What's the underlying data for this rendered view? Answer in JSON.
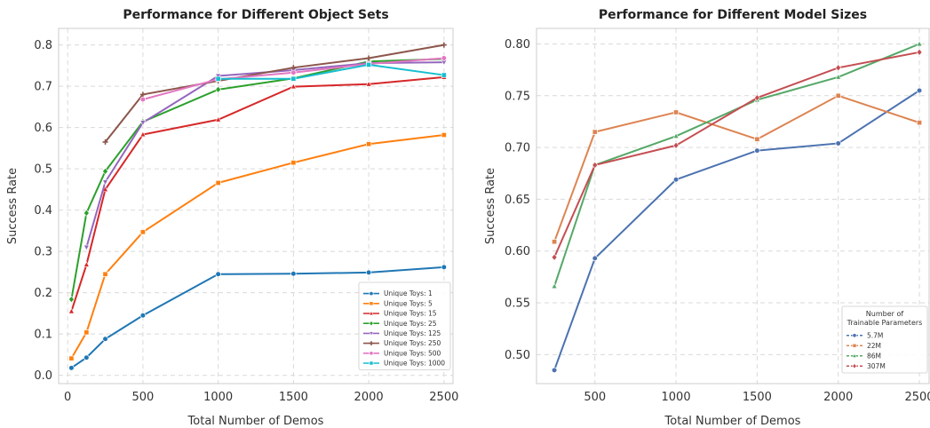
{
  "chart_data": [
    {
      "type": "line",
      "title": "Performance for Different Object Sets",
      "xlabel": "Total Number of Demos",
      "ylabel": "Success Rate",
      "xlim": [
        -60,
        2560
      ],
      "ylim": [
        -0.02,
        0.84
      ],
      "xticks": [
        0,
        500,
        1000,
        1500,
        2000,
        2500
      ],
      "yticks": [
        0.0,
        0.1,
        0.2,
        0.3,
        0.4,
        0.5,
        0.6,
        0.7,
        0.8
      ],
      "ytick_labels": [
        "0.0",
        "0.1",
        "0.2",
        "0.3",
        "0.4",
        "0.5",
        "0.6",
        "0.7",
        "0.8"
      ],
      "grid": true,
      "legend": {
        "placement": "bottom-right"
      },
      "series": [
        {
          "name": "Unique Toys: 1",
          "color": "#1f77b4",
          "marker": "circle",
          "x": [
            25,
            125,
            250,
            500,
            1000,
            1500,
            2000,
            2500
          ],
          "y": [
            0.018,
            0.043,
            0.088,
            0.145,
            0.245,
            0.246,
            0.249,
            0.262
          ]
        },
        {
          "name": "Unique Toys: 5",
          "color": "#ff7f0e",
          "marker": "square",
          "x": [
            25,
            125,
            250,
            500,
            1000,
            1500,
            2000,
            2500
          ],
          "y": [
            0.041,
            0.104,
            0.245,
            0.347,
            0.466,
            0.515,
            0.56,
            0.582
          ]
        },
        {
          "name": "Unique Toys: 15",
          "color": "#d62728",
          "marker": "triangle-up",
          "x": [
            25,
            125,
            250,
            500,
            1000,
            1500,
            2000,
            2500
          ],
          "y": [
            0.155,
            0.268,
            0.45,
            0.583,
            0.619,
            0.699,
            0.705,
            0.722
          ]
        },
        {
          "name": "Unique Toys: 25",
          "color": "#2ca02c",
          "marker": "diamond",
          "x": [
            25,
            125,
            250,
            500,
            1000,
            1500,
            2000,
            2500
          ],
          "y": [
            0.184,
            0.393,
            0.494,
            0.614,
            0.692,
            0.719,
            0.76,
            0.766
          ]
        },
        {
          "name": "Unique Toys: 125",
          "color": "#9467bd",
          "marker": "triangle-down",
          "x": [
            125,
            250,
            500,
            1000,
            1500,
            2000,
            2500
          ],
          "y": [
            0.31,
            0.468,
            0.612,
            0.725,
            0.739,
            0.756,
            0.758
          ]
        },
        {
          "name": "Unique Toys: 250",
          "color": "#8c564b",
          "marker": "plus",
          "x": [
            250,
            500,
            1000,
            1500,
            2000,
            2500
          ],
          "y": [
            0.565,
            0.68,
            0.713,
            0.745,
            0.768,
            0.8
          ]
        },
        {
          "name": "Unique Toys: 500",
          "color": "#e377c2",
          "marker": "circle",
          "x": [
            500,
            1000,
            1500,
            2000,
            2500
          ],
          "y": [
            0.668,
            0.717,
            0.733,
            0.754,
            0.768
          ]
        },
        {
          "name": "Unique Toys: 1000",
          "color": "#17becf",
          "marker": "square",
          "x": [
            1000,
            1500,
            2000,
            2500
          ],
          "y": [
            0.718,
            0.718,
            0.752,
            0.727
          ]
        }
      ]
    },
    {
      "type": "line",
      "title": "Performance for Different Model Sizes",
      "xlabel": "Total Number of Demos",
      "ylabel": "Success Rate",
      "xlim": [
        140,
        2560
      ],
      "ylim": [
        0.472,
        0.815
      ],
      "xticks": [
        500,
        1000,
        1500,
        2000,
        2500
      ],
      "yticks": [
        0.5,
        0.55,
        0.6,
        0.65,
        0.7,
        0.75,
        0.8
      ],
      "ytick_labels": [
        "0.50",
        "0.55",
        "0.60",
        "0.65",
        "0.70",
        "0.75",
        "0.80"
      ],
      "grid": true,
      "legend": {
        "placement": "bottom-right",
        "title": "Number of\nTrainable Parameters"
      },
      "series": [
        {
          "name": "5.7M",
          "color": "#4c72b0",
          "marker": "circle",
          "x": [
            250,
            500,
            1000,
            1500,
            2000,
            2500
          ],
          "y": [
            0.485,
            0.593,
            0.669,
            0.697,
            0.704,
            0.755
          ]
        },
        {
          "name": "22M",
          "color": "#dd8452",
          "marker": "square",
          "x": [
            250,
            500,
            1000,
            1500,
            2000,
            2500
          ],
          "y": [
            0.609,
            0.715,
            0.734,
            0.708,
            0.75,
            0.724
          ]
        },
        {
          "name": "86M",
          "color": "#55a868",
          "marker": "triangle-up",
          "x": [
            250,
            500,
            1000,
            1500,
            2000,
            2500
          ],
          "y": [
            0.566,
            0.683,
            0.711,
            0.746,
            0.768,
            0.8
          ]
        },
        {
          "name": "307M",
          "color": "#c44e52",
          "marker": "diamond",
          "x": [
            250,
            500,
            1000,
            1500,
            2000,
            2500
          ],
          "y": [
            0.594,
            0.683,
            0.702,
            0.748,
            0.777,
            0.792
          ]
        }
      ]
    }
  ]
}
